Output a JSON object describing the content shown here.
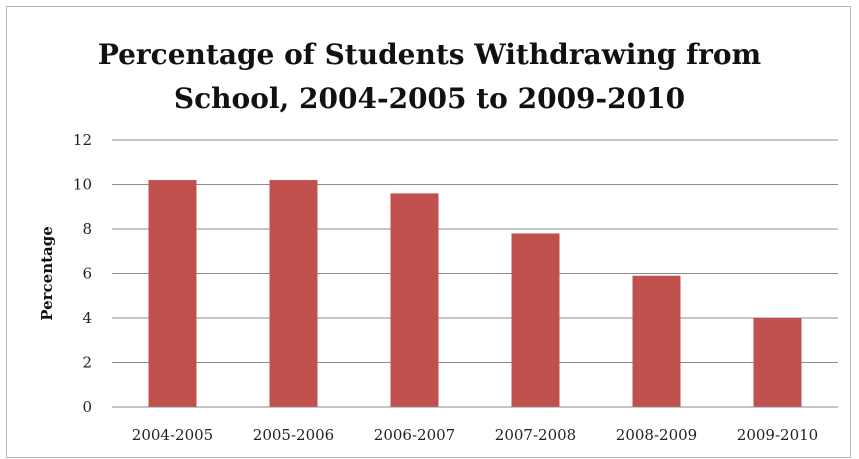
{
  "chart_data": {
    "type": "bar",
    "title": "Percentage of Students Withdrawing from\nSchool, 2004-2005 to 2009-2010",
    "xlabel": "",
    "ylabel": "Percentage",
    "categories": [
      "2004-2005",
      "2005-2006",
      "2006-2007",
      "2007-2008",
      "2008-2009",
      "2009-2010"
    ],
    "values": [
      10.2,
      10.2,
      9.6,
      7.8,
      5.9,
      4.0
    ],
    "ylim": [
      0,
      12
    ],
    "yticks": [
      "0",
      "2",
      "4",
      "6",
      "8",
      "10",
      "12"
    ],
    "grid": true,
    "legend": "none",
    "bar_color": "#c0504d"
  }
}
